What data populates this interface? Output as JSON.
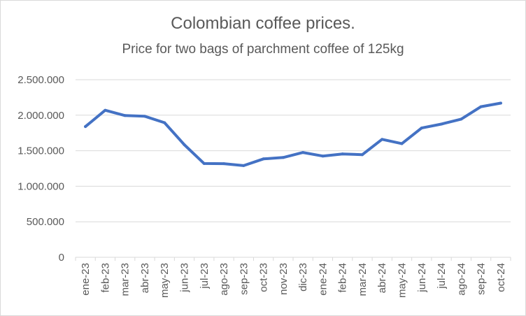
{
  "chart_data": {
    "type": "line",
    "title": "Colombian coffee prices.",
    "subtitle": "Price for two bags of parchment coffee of 125kg",
    "xlabel": "",
    "ylabel": "",
    "categories": [
      "ene-23",
      "feb-23",
      "mar-23",
      "abr-23",
      "may-23",
      "jun-23",
      "jul-23",
      "ago-23",
      "sep-23",
      "oct-23",
      "nov-23",
      "dic-23",
      "ene-24",
      "feb-24",
      "mar-24",
      "abr-24",
      "may-24",
      "jun-24",
      "jul-24",
      "ago-24",
      "sep-24",
      "oct-24"
    ],
    "series": [
      {
        "values": [
          1840000,
          2070000,
          1995000,
          1985000,
          1895000,
          1585000,
          1320000,
          1318000,
          1290000,
          1385000,
          1405000,
          1475000,
          1425000,
          1455000,
          1445000,
          1660000,
          1600000,
          1820000,
          1875000,
          1945000,
          2120000,
          2170000
        ]
      }
    ],
    "ylim": [
      0,
      2500000
    ],
    "yticks": [
      0,
      500000,
      1000000,
      1500000,
      2000000,
      2500000
    ],
    "ytick_labels": [
      "0",
      "500.000",
      "1.000.000",
      "1.500.000",
      "2.000.000",
      "2.500.000"
    ],
    "grid": true,
    "legend": "none",
    "colors": {
      "line": "#4472c4",
      "grid": "#d9d9d9",
      "text": "#595959"
    }
  }
}
